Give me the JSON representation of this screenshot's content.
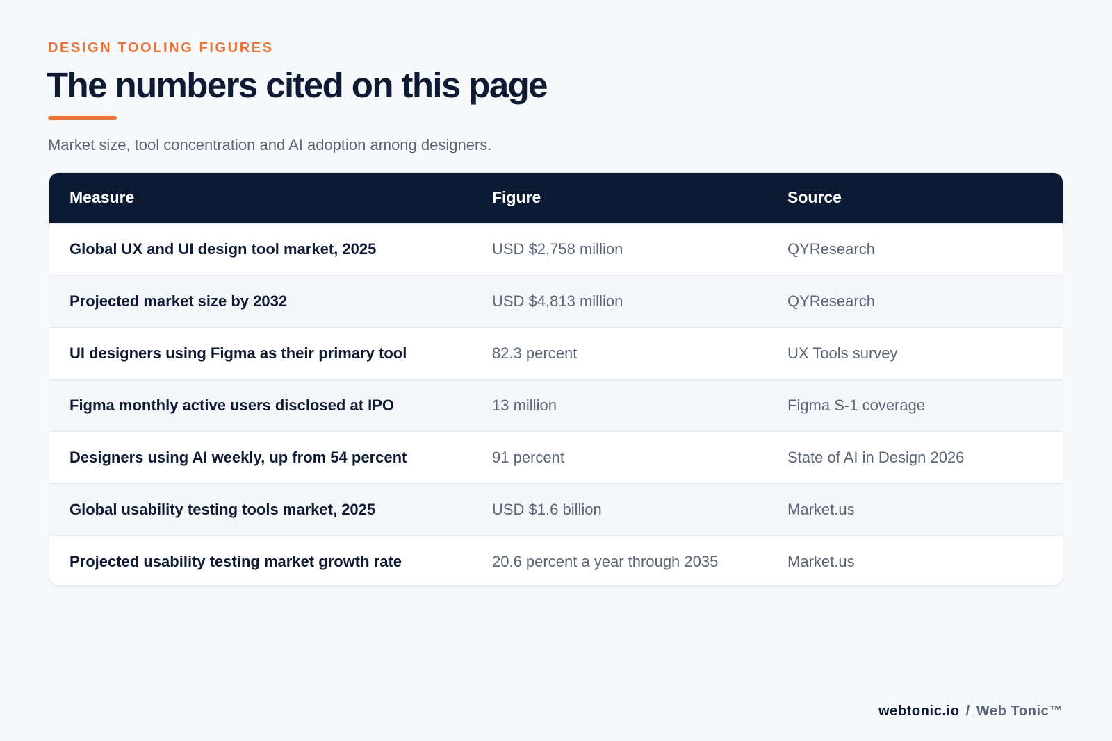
{
  "eyebrow": "DESIGN TOOLING FIGURES",
  "title": "The numbers cited on this page",
  "subtitle": "Market size, tool concentration and AI adoption among designers.",
  "table": {
    "headers": {
      "measure": "Measure",
      "figure": "Figure",
      "source": "Source"
    },
    "rows": [
      {
        "measure": "Global UX and UI design tool market, 2025",
        "figure": "USD $2,758 million",
        "source": "QYResearch"
      },
      {
        "measure": "Projected market size by 2032",
        "figure": "USD $4,813 million",
        "source": "QYResearch"
      },
      {
        "measure": "UI designers using Figma as their primary tool",
        "figure": "82.3 percent",
        "source": "UX Tools survey"
      },
      {
        "measure": "Figma monthly active users disclosed at IPO",
        "figure": "13 million",
        "source": "Figma S-1 coverage"
      },
      {
        "measure": "Designers using AI weekly, up from 54 percent",
        "figure": "91 percent",
        "source": "State of AI in Design 2026"
      },
      {
        "measure": "Global usability testing tools market, 2025",
        "figure": "USD $1.6 billion",
        "source": "Market.us"
      },
      {
        "measure": "Projected usability testing market growth rate",
        "figure": "20.6 percent a year through 2035",
        "source": "Market.us"
      }
    ]
  },
  "footer": {
    "domain": "webtonic.io",
    "separator": "/",
    "brand": "Web Tonic™"
  },
  "colors": {
    "accent": "#ef7330",
    "header_bg": "#0c1a33",
    "text_dark": "#0f1b33",
    "text_muted": "#5a6578",
    "page_bg": "#f6f8fb"
  }
}
